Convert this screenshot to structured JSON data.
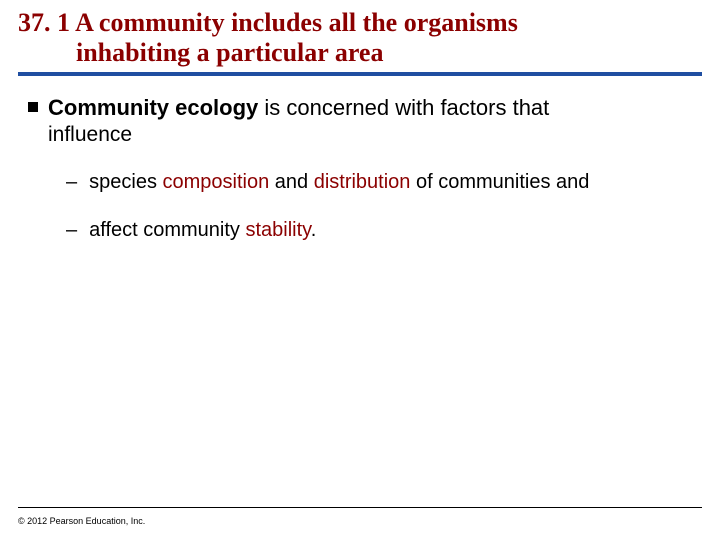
{
  "title": {
    "line1": "37. 1 A community includes all the organisms",
    "line2": "inhabiting a particular area",
    "color": "#8b0000",
    "fontsize": 26,
    "font_family": "Times New Roman"
  },
  "divider": {
    "color": "#1f4ea1",
    "thickness": 4
  },
  "main_bullet": {
    "bold_part": "Community ecology",
    "rest": " is concerned with factors that",
    "continuation": "influence",
    "fontsize": 22,
    "bullet_color": "#000000",
    "bullet_size": 10
  },
  "sub_bullets": [
    {
      "segments": [
        {
          "text": "species ",
          "highlight": false
        },
        {
          "text": "composition",
          "highlight": true
        },
        {
          "text": " and ",
          "highlight": false
        },
        {
          "text": "distribution",
          "highlight": true
        },
        {
          "text": " of communities and",
          "highlight": false
        }
      ]
    },
    {
      "segments": [
        {
          "text": "affect community ",
          "highlight": false
        },
        {
          "text": "stability",
          "highlight": true
        },
        {
          "text": ".",
          "highlight": false
        }
      ]
    }
  ],
  "sub_bullet_style": {
    "dash": "–",
    "fontsize": 20,
    "highlight_color": "#8b0000"
  },
  "footer": {
    "copyright": "© 2012 Pearson Education, Inc.",
    "fontsize": 9,
    "line_color": "#000000"
  }
}
